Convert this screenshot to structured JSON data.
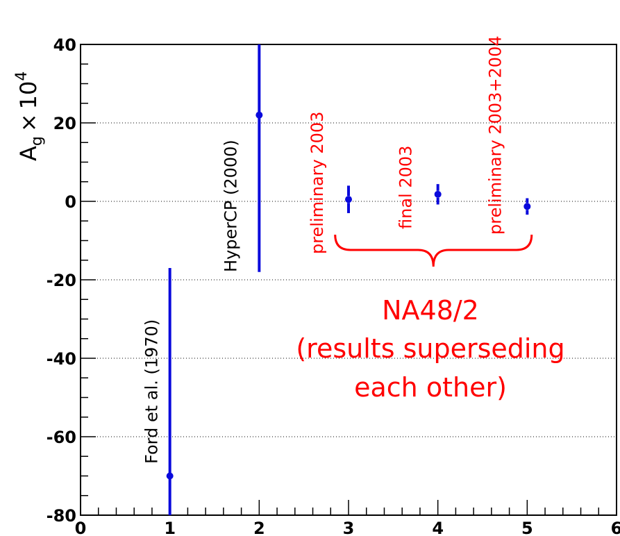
{
  "chart_data": {
    "type": "scatter",
    "title": "",
    "xlabel": "",
    "ylabel": {
      "base": "A",
      "subscript": "g",
      "times": "×",
      "power_base": "10",
      "power_exp": "4"
    },
    "xlim": [
      0,
      6
    ],
    "ylim": [
      -80,
      40
    ],
    "x_ticks": [
      0,
      1,
      2,
      3,
      4,
      5,
      6
    ],
    "x_tick_labels": [
      "0",
      "1",
      "2",
      "3",
      "4",
      "5",
      "6"
    ],
    "y_ticks": [
      -80,
      -60,
      -40,
      -20,
      0,
      20,
      40
    ],
    "y_tick_labels": [
      "-80",
      "-60",
      "-40",
      "-20",
      "0",
      "20",
      "40"
    ],
    "grid": {
      "horizontal": true,
      "vertical": false,
      "style": "dotted"
    },
    "colors": {
      "points": "#0a0adc",
      "annotation_red": "#ff0000",
      "annotation_black": "#000000"
    },
    "points": [
      {
        "x": 1,
        "y": -70,
        "err_low": 53,
        "err_high": 53,
        "label": "Ford et al. (1970)",
        "label_color": "#000000"
      },
      {
        "x": 2,
        "y": 22,
        "err_low": 40,
        "err_high": 40,
        "label": "HyperCP (2000)",
        "label_color": "#000000"
      },
      {
        "x": 3,
        "y": 0.5,
        "err_low": 3.5,
        "err_high": 3.5,
        "label": "preliminary 2003",
        "label_color": "#ff0000"
      },
      {
        "x": 4,
        "y": 1.8,
        "err_low": 2.6,
        "err_high": 2.6,
        "label": "final 2003",
        "label_color": "#ff0000"
      },
      {
        "x": 5,
        "y": -1.3,
        "err_low": 2.1,
        "err_high": 2.1,
        "label": "preliminary 2003+2004",
        "label_color": "#ff0000"
      }
    ],
    "group_annotation": {
      "lines": [
        "NA48/2",
        "(results superseding",
        "each other)"
      ],
      "color": "#ff0000",
      "brace_from_x": 2.85,
      "brace_to_x": 5.05
    }
  }
}
